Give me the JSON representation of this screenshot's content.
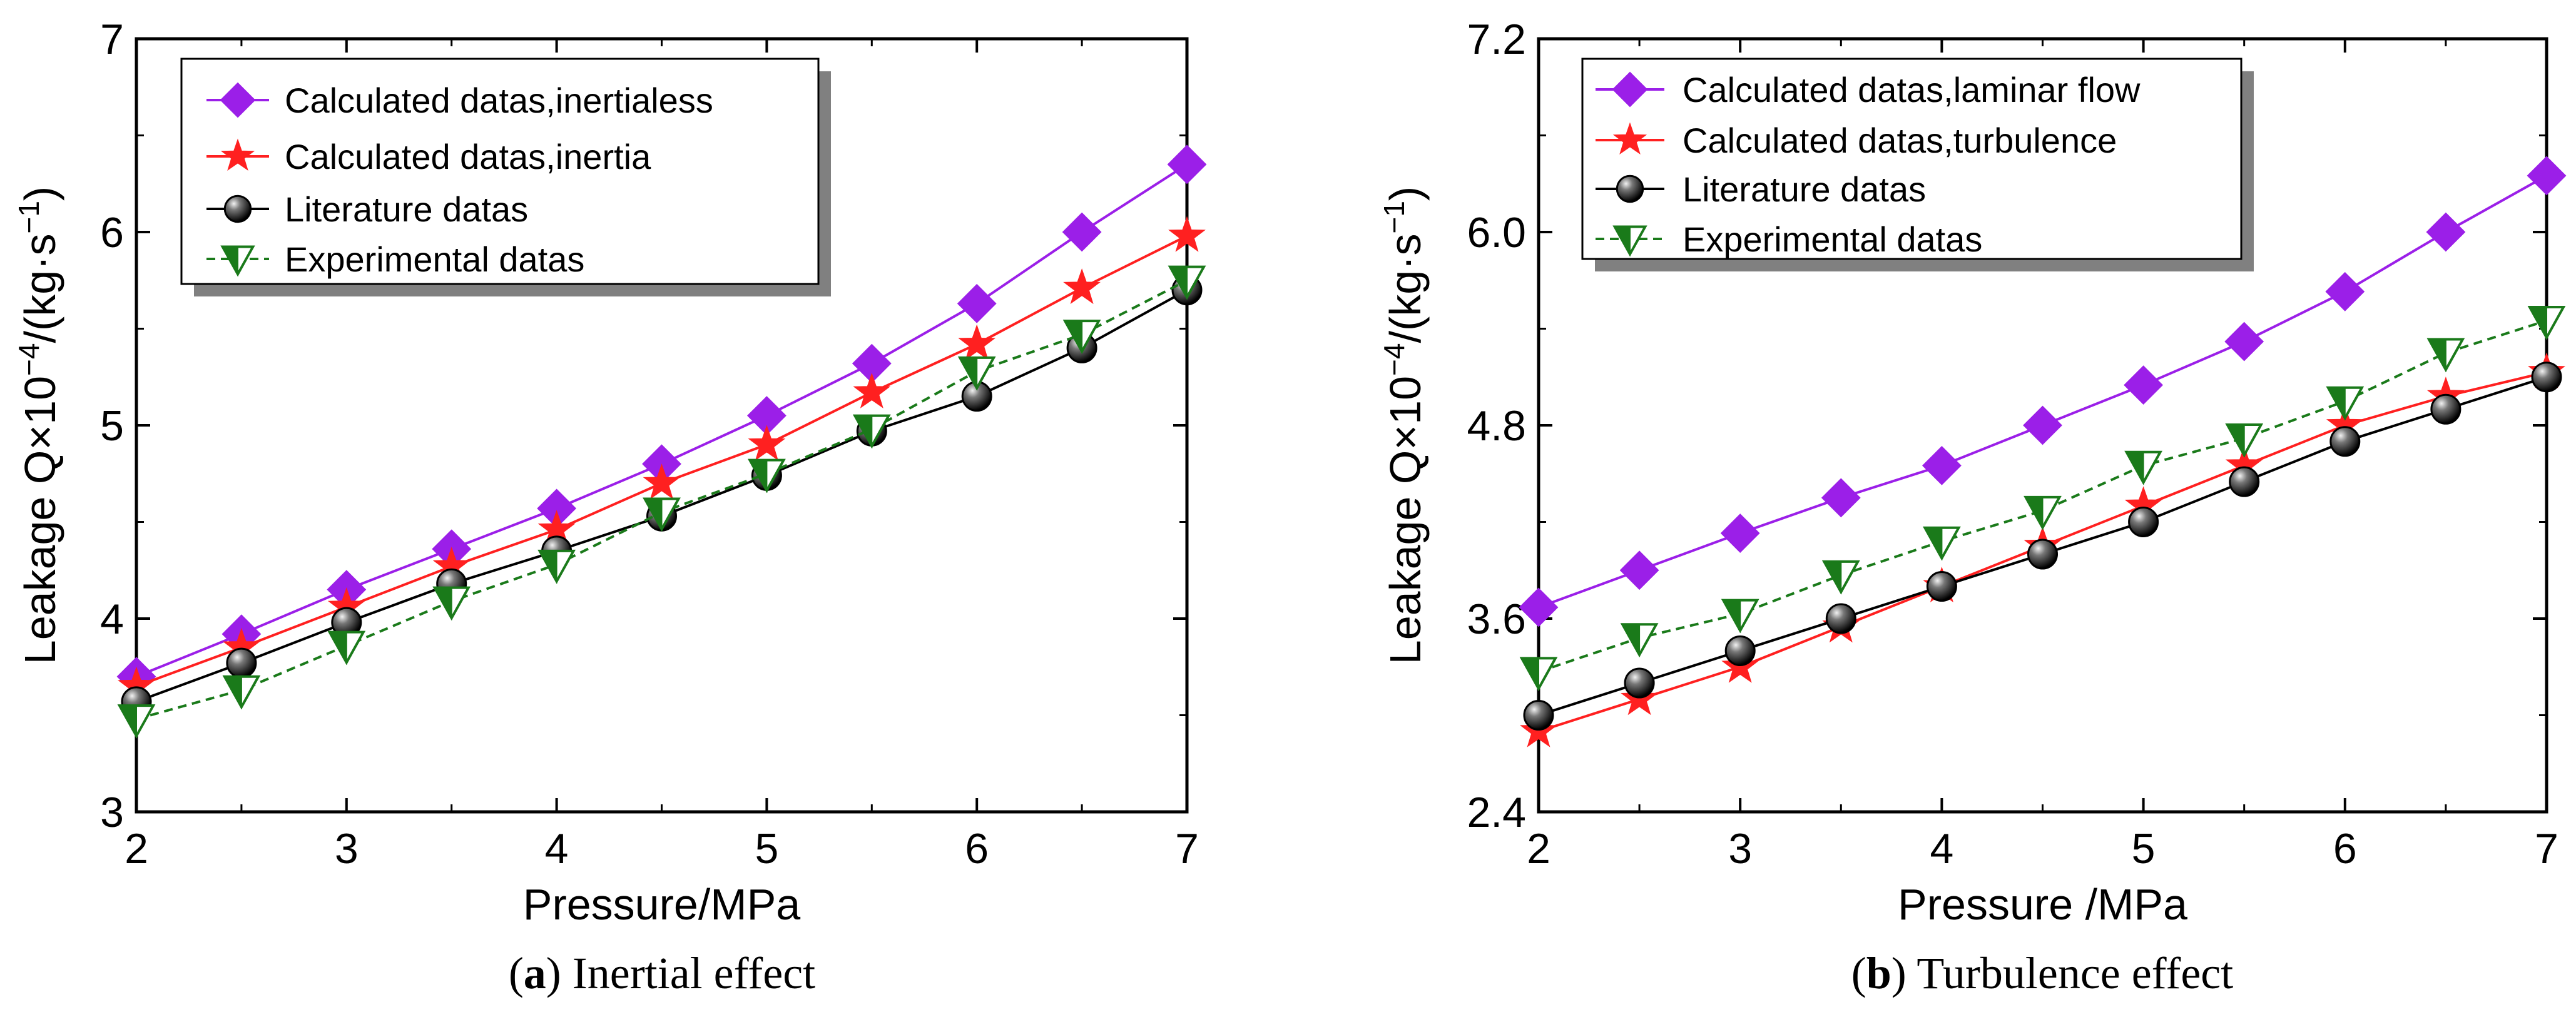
{
  "chart_data": [
    {
      "type": "line",
      "xlabel": "Pressure/MPa",
      "ylabel_main": "Leakage Q×10",
      "ylabel_exp1": "−4",
      "ylabel_mid": "/(kg·s",
      "ylabel_exp2": "−1",
      "ylabel_end": ")",
      "xlim": [
        2,
        7
      ],
      "ylim": [
        3,
        7
      ],
      "xticks": [
        "2",
        "3",
        "4",
        "5",
        "6",
        "7"
      ],
      "yticks": [
        "3",
        "4",
        "5",
        "6",
        "7"
      ],
      "x": [
        2,
        2.5,
        3,
        3.5,
        4,
        4.5,
        5,
        5.5,
        6,
        6.5,
        7
      ],
      "legend_position": "top-left",
      "caption_label": "a",
      "caption_text": "Inertial effect",
      "series": [
        {
          "name": "Calculated datas,inertialess",
          "color": "#9b1fe8",
          "marker": "diamond",
          "dash": false,
          "values": [
            3.7,
            3.92,
            4.15,
            4.36,
            4.57,
            4.8,
            5.05,
            5.32,
            5.63,
            6.0,
            6.35
          ]
        },
        {
          "name": "Calculated datas,inertia",
          "color": "#ff2020",
          "marker": "star",
          "dash": false,
          "values": [
            3.65,
            3.85,
            4.06,
            4.27,
            4.46,
            4.7,
            4.9,
            5.17,
            5.42,
            5.71,
            5.98
          ]
        },
        {
          "name": "Literature datas",
          "color": "#000000",
          "marker": "ball",
          "dash": false,
          "values": [
            3.57,
            3.77,
            3.98,
            4.18,
            4.35,
            4.53,
            4.74,
            4.97,
            5.15,
            5.4,
            5.7
          ]
        },
        {
          "name": "Experimental datas",
          "color": "#1a7a1a",
          "marker": "triangle",
          "dash": true,
          "values": [
            3.48,
            3.63,
            3.86,
            4.09,
            4.28,
            4.55,
            4.75,
            4.98,
            5.28,
            5.47,
            5.75
          ]
        }
      ]
    },
    {
      "type": "line",
      "xlabel": "Pressure /MPa",
      "ylabel_main": "Leakage Q×10",
      "ylabel_exp1": "−4",
      "ylabel_mid": "/(kg·s",
      "ylabel_exp2": "−1",
      "ylabel_end": ")",
      "xlim": [
        2,
        7
      ],
      "ylim": [
        2.4,
        7.2
      ],
      "xticks": [
        "2",
        "3",
        "4",
        "5",
        "6",
        "7"
      ],
      "yticks": [
        "2.4",
        "3.6",
        "4.8",
        "6.0",
        "7.2"
      ],
      "x": [
        2,
        2.5,
        3,
        3.5,
        4,
        4.5,
        5,
        5.5,
        6,
        6.5,
        7
      ],
      "legend_position": "top-left",
      "caption_label": "b",
      "caption_text": "Turbulence effect",
      "series": [
        {
          "name": "Calculated datas,laminar flow",
          "color": "#9b1fe8",
          "marker": "diamond",
          "dash": false,
          "values": [
            3.67,
            3.9,
            4.13,
            4.35,
            4.55,
            4.8,
            5.05,
            5.32,
            5.63,
            6.0,
            6.35
          ]
        },
        {
          "name": "Calculated datas,turbulence",
          "color": "#ff2020",
          "marker": "star",
          "dash": false,
          "values": [
            2.9,
            3.1,
            3.3,
            3.55,
            3.8,
            4.05,
            4.3,
            4.55,
            4.8,
            4.98,
            5.13
          ]
        },
        {
          "name": "Literature datas",
          "color": "#000000",
          "marker": "ball",
          "dash": false,
          "values": [
            3.0,
            3.2,
            3.4,
            3.6,
            3.8,
            4.0,
            4.2,
            4.45,
            4.7,
            4.9,
            5.1
          ]
        },
        {
          "name": "Experimental datas",
          "color": "#1a7a1a",
          "marker": "triangle",
          "dash": true,
          "values": [
            3.27,
            3.48,
            3.63,
            3.87,
            4.08,
            4.27,
            4.55,
            4.72,
            4.95,
            5.25,
            5.45
          ]
        }
      ]
    }
  ]
}
